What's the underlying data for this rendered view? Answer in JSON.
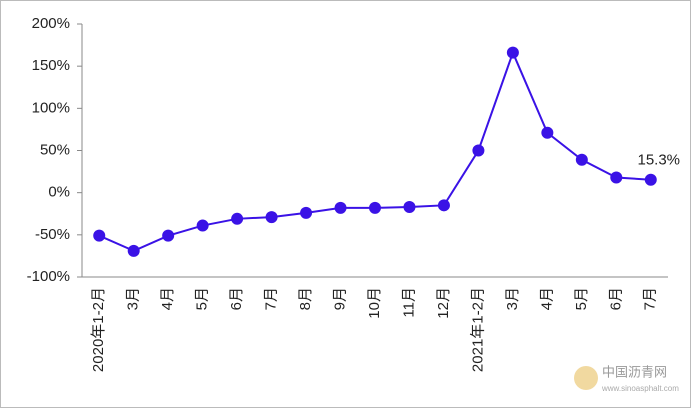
{
  "chart_data": {
    "type": "line",
    "categories": [
      "2020年1-2月",
      "3月",
      "4月",
      "5月",
      "6月",
      "7月",
      "8月",
      "9月",
      "10月",
      "11月",
      "12月",
      "2021年1-2月",
      "3月",
      "4月",
      "5月",
      "6月",
      "7月"
    ],
    "series": [
      {
        "color": "#3a12e6",
        "values": [
          -51,
          -69,
          -51,
          -39,
          -31,
          -29,
          -24,
          -18,
          -18,
          -17,
          -15,
          50,
          166,
          71,
          39,
          18,
          15.3
        ],
        "value_labels": [
          null,
          null,
          null,
          null,
          null,
          null,
          null,
          null,
          null,
          null,
          null,
          null,
          null,
          null,
          null,
          null,
          "15.3%"
        ]
      }
    ],
    "ylim": [
      -100,
      200
    ],
    "yticks": [
      {
        "value": -100,
        "label": "-100%"
      },
      {
        "value": -50,
        "label": "-50%"
      },
      {
        "value": 0,
        "label": "0%"
      },
      {
        "value": 50,
        "label": "50%"
      },
      {
        "value": 100,
        "label": "100%"
      },
      {
        "value": 150,
        "label": "150%"
      },
      {
        "value": 200,
        "label": "200%"
      }
    ]
  },
  "watermark": {
    "name": "中国沥青网",
    "url": "www.sinoasphalt.com"
  }
}
